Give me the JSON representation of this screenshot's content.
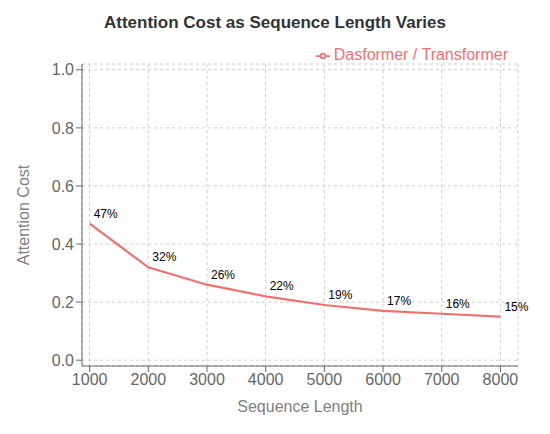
{
  "chart_data": {
    "type": "line",
    "title": "Attention Cost as Sequence Length Varies",
    "xlabel": "Sequence Length",
    "ylabel": "Attention Cost",
    "x": [
      1000,
      2000,
      3000,
      4000,
      5000,
      6000,
      7000,
      8000
    ],
    "series": [
      {
        "name": "Dasformer / Transformer",
        "color": "#f07070",
        "values": [
          0.47,
          0.32,
          0.26,
          0.22,
          0.19,
          0.17,
          0.16,
          0.15
        ],
        "value_labels": [
          "47%",
          "32%",
          "26%",
          "22%",
          "19%",
          "17%",
          "16%",
          "15%"
        ]
      }
    ],
    "xlim": [
      870,
      8300
    ],
    "ylim": [
      -0.02,
      1.02
    ],
    "xticks": [
      1000,
      2000,
      3000,
      4000,
      5000,
      6000,
      7000,
      8000
    ],
    "yticks": [
      {
        "value": 0,
        "label": "0.0"
      },
      0.2,
      0.4,
      0.6,
      0.8,
      {
        "value": 1,
        "label": "1.0"
      }
    ],
    "grid": true,
    "legend": "upper right",
    "data_labels": true
  }
}
